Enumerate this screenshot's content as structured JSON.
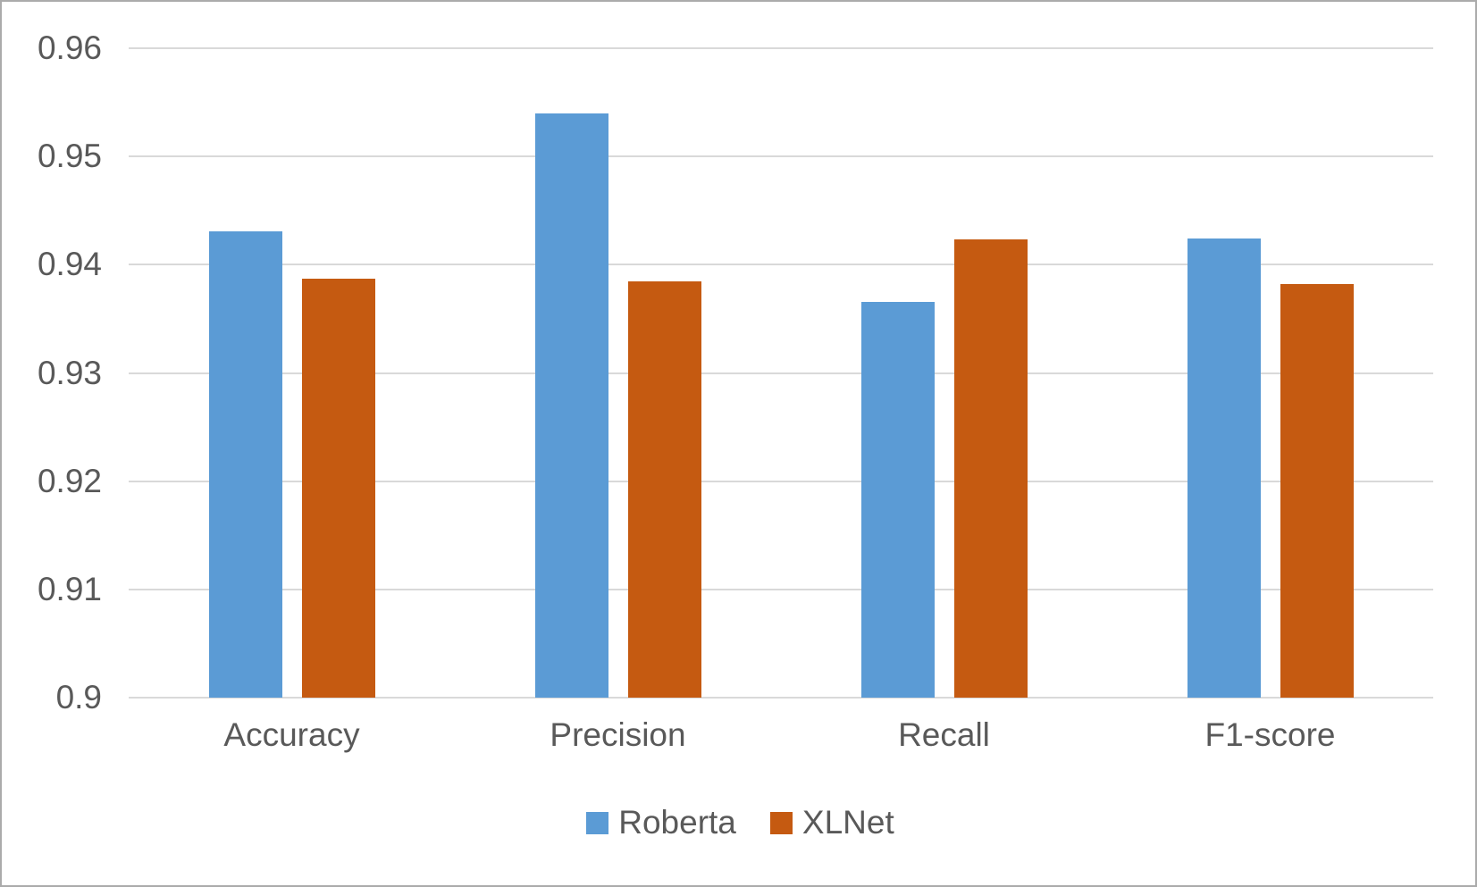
{
  "chart_data": {
    "type": "bar",
    "title": "",
    "categories": [
      "Accuracy",
      "Precision",
      "Recall",
      "F1-score"
    ],
    "series": [
      {
        "name": "Roberta",
        "color": "#5B9BD5",
        "values": [
          0.9431,
          0.954,
          0.9366,
          0.9424
        ]
      },
      {
        "name": "XLNet",
        "color": "#C55A11",
        "values": [
          0.9387,
          0.9385,
          0.9423,
          0.9382
        ]
      }
    ],
    "ylim": [
      0.9,
      0.96
    ],
    "yticks": [
      "0.96",
      "0.95",
      "0.94",
      "0.93",
      "0.92",
      "0.91",
      "0.9"
    ],
    "xlabel": "",
    "ylabel": "",
    "grid": true,
    "legend_position": "bottom",
    "colors": {
      "gridline": "#D9D9D9",
      "text": "#595959",
      "frame": "#ABABAB",
      "background": "#FFFFFF"
    }
  }
}
